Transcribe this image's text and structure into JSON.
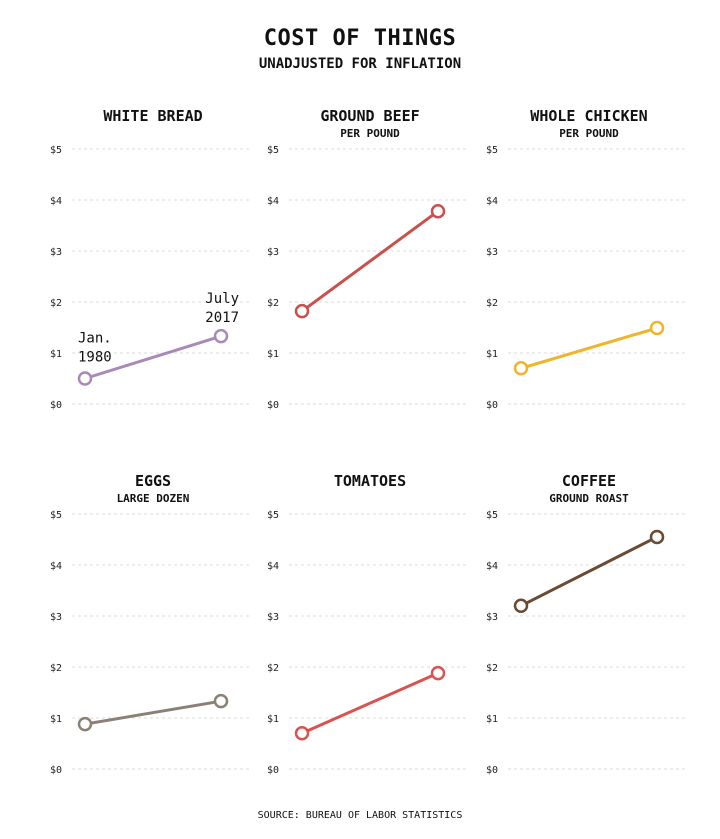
{
  "header": {
    "title": "COST OF THINGS",
    "subtitle": "UNADJUSTED FOR INFLATION"
  },
  "footer": {
    "source": "SOURCE: BUREAU OF LABOR STATISTICS"
  },
  "colors": {
    "purple": "#a88ab8",
    "red": "#c8514b",
    "yellow": "#f0b429",
    "taupe": "#8b8173",
    "coral": "#d9534f",
    "brown": "#6b4a32"
  },
  "chart_data": [
    {
      "type": "line",
      "title": "WHITE BREAD",
      "subtitle": "",
      "x": [
        "Jan. 1980",
        "July 2017"
      ],
      "values": [
        0.5,
        1.33
      ],
      "ylim": [
        0,
        5
      ],
      "yticks": [
        "$0",
        "$1",
        "$2",
        "$3",
        "$4",
        "$5"
      ],
      "color": "#a88ab8",
      "annotations": {
        "start_line1": "Jan.",
        "start_line2": "1980",
        "end_line1": "July",
        "end_line2": "2017"
      },
      "grid": true
    },
    {
      "type": "line",
      "title": "GROUND BEEF",
      "subtitle": "PER POUND",
      "x": [
        "Jan. 1980",
        "July 2017"
      ],
      "values": [
        1.82,
        3.78
      ],
      "ylim": [
        0,
        5
      ],
      "yticks": [
        "$0",
        "$1",
        "$2",
        "$3",
        "$4",
        "$5"
      ],
      "color": "#c8514b",
      "grid": true
    },
    {
      "type": "line",
      "title": "WHOLE CHICKEN",
      "subtitle": "PER POUND",
      "x": [
        "Jan. 1980",
        "July 2017"
      ],
      "values": [
        0.7,
        1.49
      ],
      "ylim": [
        0,
        5
      ],
      "yticks": [
        "$0",
        "$1",
        "$2",
        "$3",
        "$4",
        "$5"
      ],
      "color": "#f0b429",
      "grid": true
    },
    {
      "type": "line",
      "title": "EGGS",
      "subtitle": "LARGE DOZEN",
      "x": [
        "Jan. 1980",
        "July 2017"
      ],
      "values": [
        0.88,
        1.33
      ],
      "ylim": [
        0,
        5
      ],
      "yticks": [
        "$0",
        "$1",
        "$2",
        "$3",
        "$4",
        "$5"
      ],
      "color": "#8b8173",
      "grid": true
    },
    {
      "type": "line",
      "title": "TOMATOES",
      "subtitle": "",
      "x": [
        "Jan. 1980",
        "July 2017"
      ],
      "values": [
        0.7,
        1.88
      ],
      "ylim": [
        0,
        5
      ],
      "yticks": [
        "$0",
        "$1",
        "$2",
        "$3",
        "$4",
        "$5"
      ],
      "color": "#d9534f",
      "grid": true
    },
    {
      "type": "line",
      "title": "COFFEE",
      "subtitle": "GROUND ROAST",
      "x": [
        "Jan. 1980",
        "July 2017"
      ],
      "values": [
        3.2,
        4.55
      ],
      "ylim": [
        0,
        5
      ],
      "yticks": [
        "$0",
        "$1",
        "$2",
        "$3",
        "$4",
        "$5"
      ],
      "color": "#6b4a32",
      "grid": true
    }
  ]
}
